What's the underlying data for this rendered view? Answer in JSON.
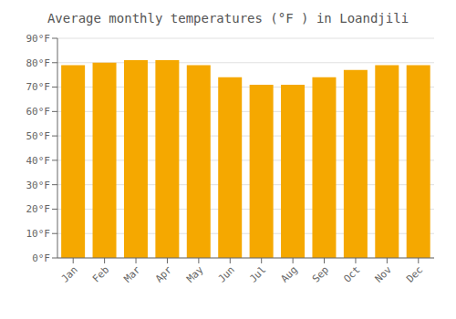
{
  "chart_data": {
    "type": "bar",
    "title": "Average monthly temperatures (°F ) in Loandjili",
    "categories": [
      "Jan",
      "Feb",
      "Mar",
      "Apr",
      "May",
      "Jun",
      "Jul",
      "Aug",
      "Sep",
      "Oct",
      "Nov",
      "Dec"
    ],
    "values": [
      79,
      80,
      81,
      81,
      79,
      74,
      71,
      71,
      74,
      77,
      79,
      79
    ],
    "color": "#F5A800",
    "ylim": [
      0,
      90
    ],
    "yticks": [
      {
        "value": 0,
        "label": "0°F"
      },
      {
        "value": 10,
        "label": "10°F"
      },
      {
        "value": 20,
        "label": "20°F"
      },
      {
        "value": 30,
        "label": "30°F"
      },
      {
        "value": 40,
        "label": "40°F"
      },
      {
        "value": 50,
        "label": "50°F"
      },
      {
        "value": 60,
        "label": "60°F"
      },
      {
        "value": 70,
        "label": "70°F"
      },
      {
        "value": 80,
        "label": "80°F"
      },
      {
        "value": 90,
        "label": "90°F"
      }
    ],
    "grid": true
  }
}
